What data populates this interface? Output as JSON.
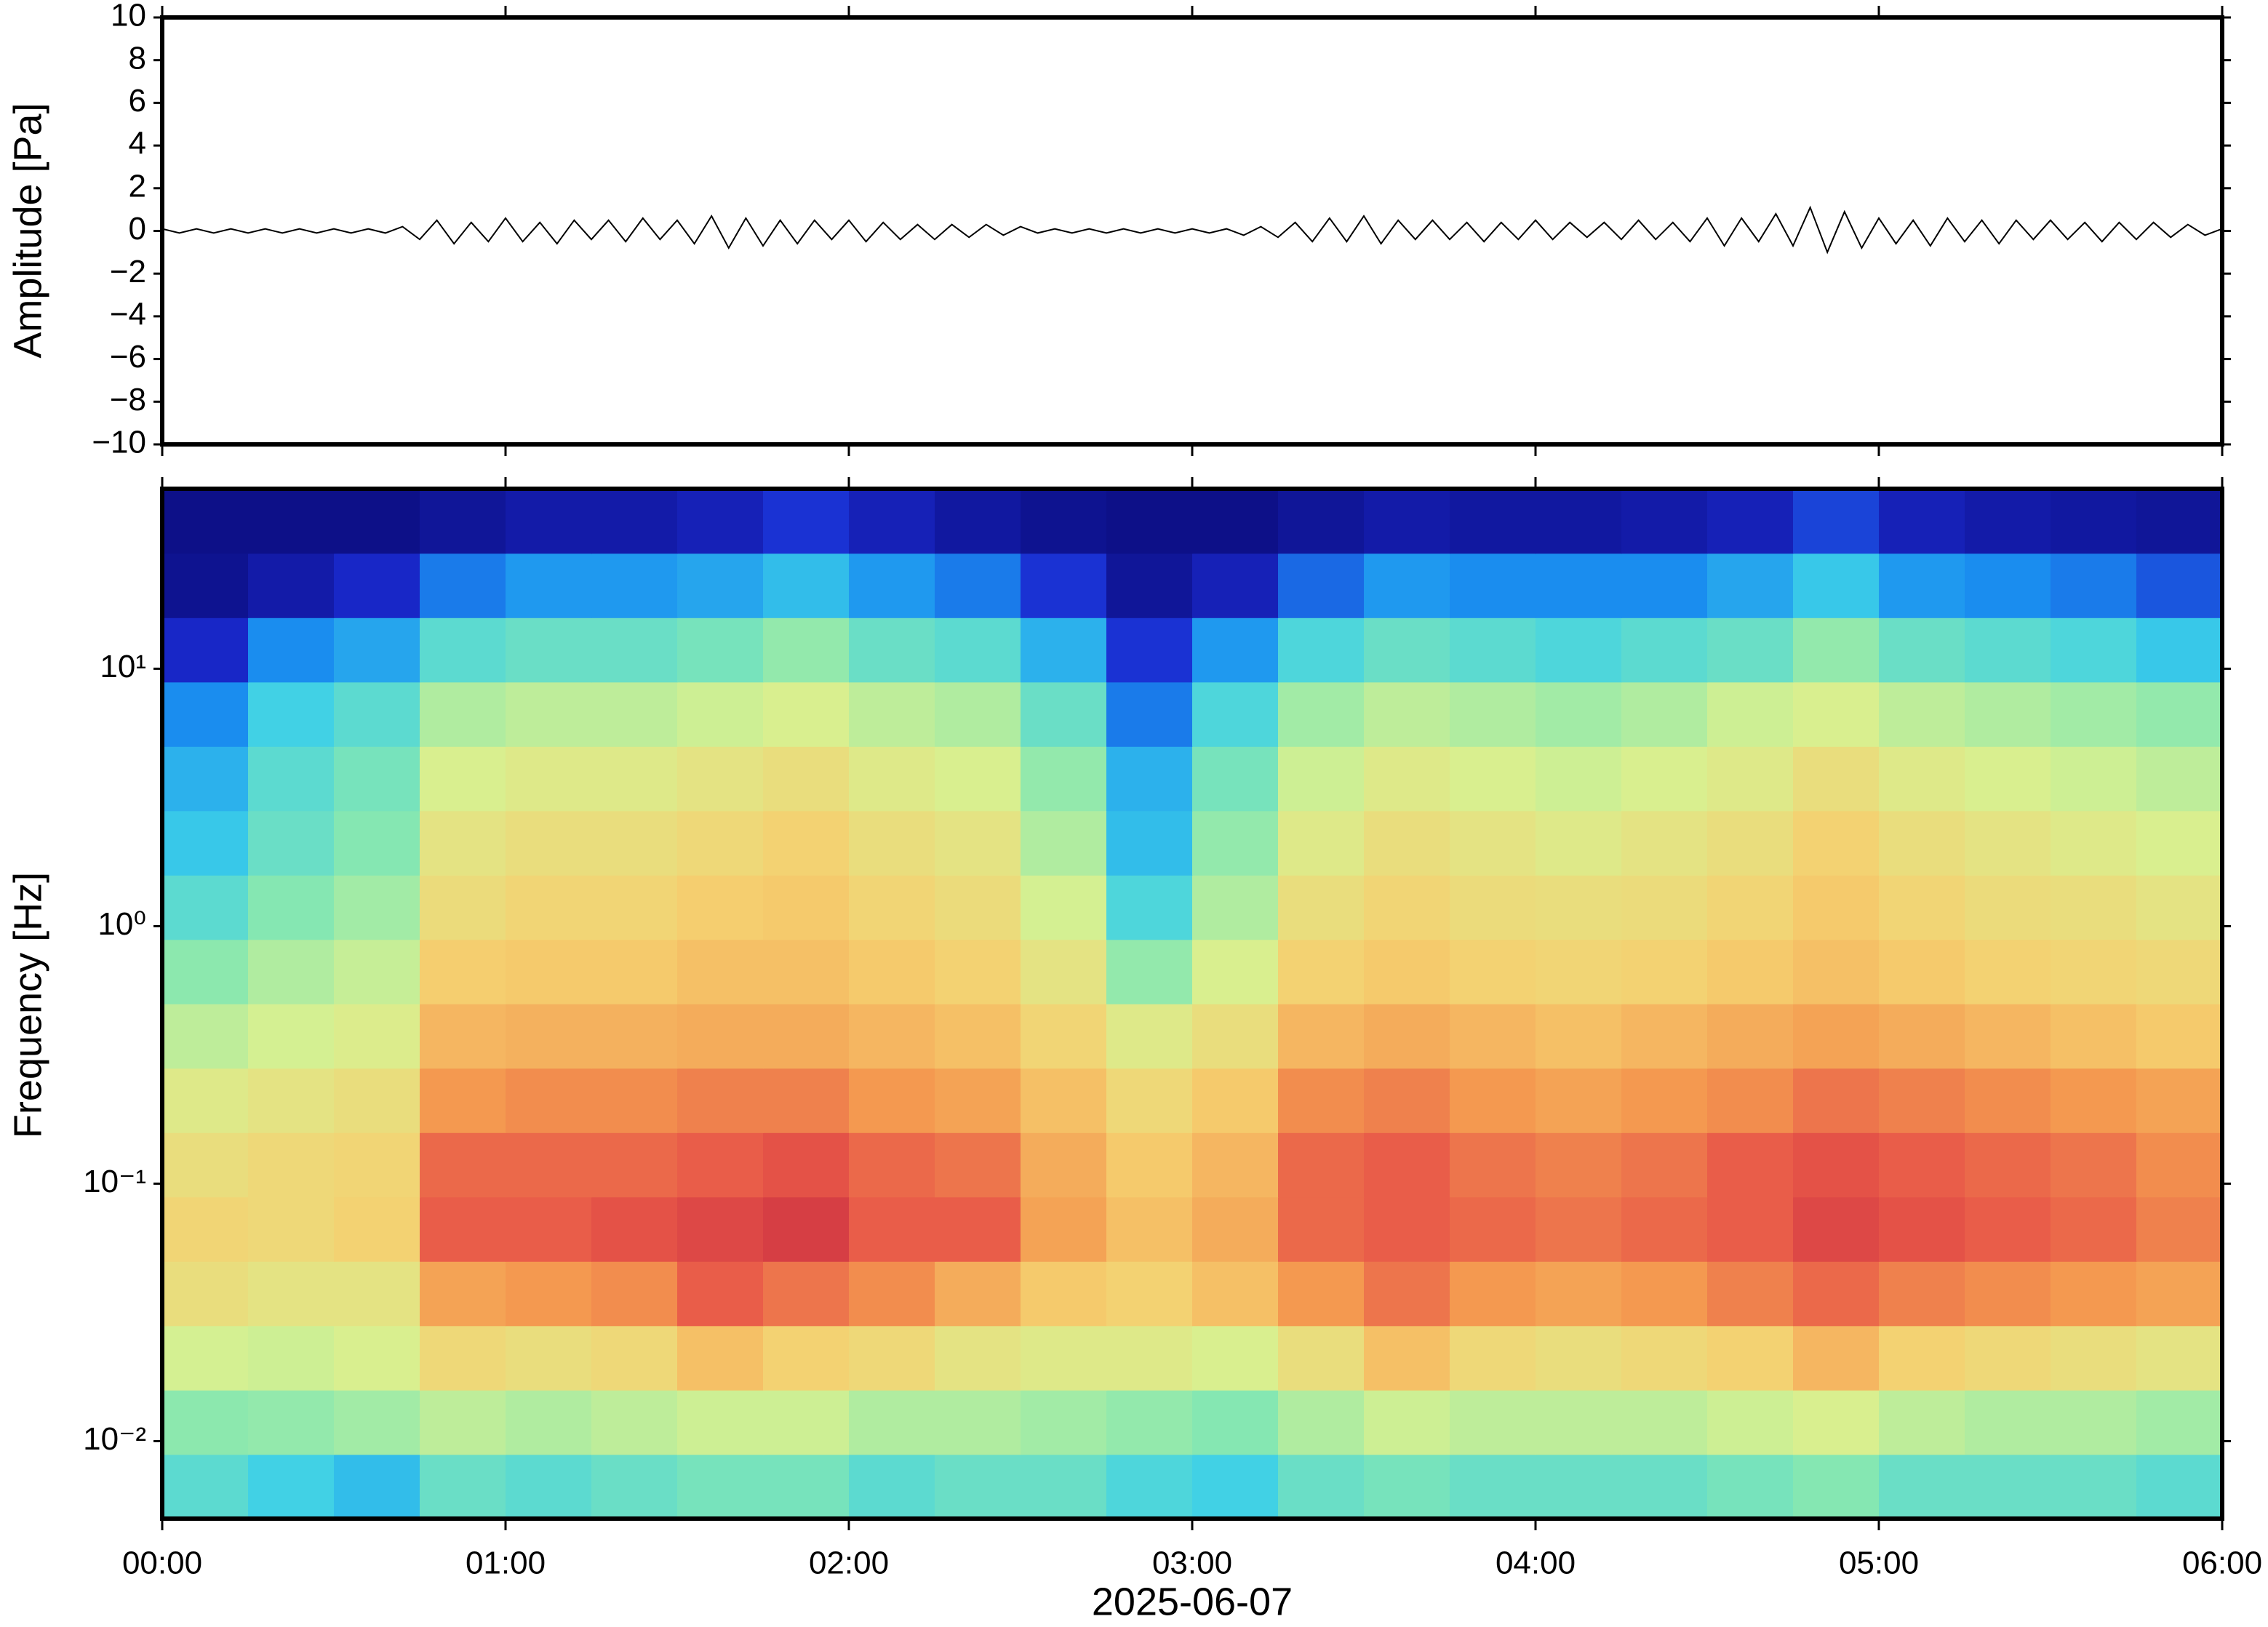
{
  "chart_data": [
    {
      "type": "line",
      "y_label": "Amplitude [Pa]",
      "color": "#000000",
      "xlim": [
        0,
        360
      ],
      "xticks": [
        {
          "value": 0,
          "label": "00:00"
        },
        {
          "value": 60,
          "label": "01:00"
        },
        {
          "value": 120,
          "label": "02:00"
        },
        {
          "value": 180,
          "label": "03:00"
        },
        {
          "value": 240,
          "label": "04:00"
        },
        {
          "value": 300,
          "label": "05:00"
        },
        {
          "value": 360,
          "label": "06:00"
        }
      ],
      "ylim": [
        -10,
        10
      ],
      "yticks": [
        {
          "value": -10,
          "label": "−10"
        },
        {
          "value": -8,
          "label": "−8"
        },
        {
          "value": -6,
          "label": "−6"
        },
        {
          "value": -4,
          "label": "−4"
        },
        {
          "value": -2,
          "label": "−2"
        },
        0,
        2,
        4,
        6,
        8,
        10
      ],
      "x": [
        0,
        3,
        6,
        9,
        12,
        15,
        18,
        21,
        24,
        27,
        30,
        33,
        36,
        39,
        42,
        45,
        48,
        51,
        54,
        57,
        60,
        63,
        66,
        69,
        72,
        75,
        78,
        81,
        84,
        87,
        90,
        93,
        96,
        99,
        102,
        105,
        108,
        111,
        114,
        117,
        120,
        123,
        126,
        129,
        132,
        135,
        138,
        141,
        144,
        147,
        150,
        153,
        156,
        159,
        162,
        165,
        168,
        171,
        174,
        177,
        180,
        183,
        186,
        189,
        192,
        195,
        198,
        201,
        204,
        207,
        210,
        213,
        216,
        219,
        222,
        225,
        228,
        231,
        234,
        237,
        240,
        243,
        246,
        249,
        252,
        255,
        258,
        261,
        264,
        267,
        270,
        273,
        276,
        279,
        282,
        285,
        288,
        291,
        294,
        297,
        300,
        303,
        306,
        309,
        312,
        315,
        318,
        321,
        324,
        327,
        330,
        333,
        336,
        339,
        342,
        345,
        348,
        351,
        354,
        357,
        360
      ],
      "values": [
        0.1,
        -0.1,
        0.1,
        -0.1,
        0.1,
        -0.1,
        0.1,
        -0.1,
        0.1,
        -0.1,
        0.1,
        -0.1,
        0.1,
        -0.1,
        0.2,
        -0.4,
        0.5,
        -0.6,
        0.4,
        -0.5,
        0.6,
        -0.5,
        0.4,
        -0.6,
        0.5,
        -0.4,
        0.5,
        -0.5,
        0.6,
        -0.4,
        0.5,
        -0.6,
        0.7,
        -0.8,
        0.6,
        -0.7,
        0.5,
        -0.6,
        0.5,
        -0.4,
        0.5,
        -0.5,
        0.4,
        -0.4,
        0.3,
        -0.4,
        0.3,
        -0.3,
        0.3,
        -0.2,
        0.2,
        -0.1,
        0.1,
        -0.1,
        0.1,
        -0.1,
        0.1,
        -0.1,
        0.1,
        -0.1,
        0.1,
        -0.1,
        0.1,
        -0.2,
        0.2,
        -0.3,
        0.4,
        -0.5,
        0.6,
        -0.5,
        0.7,
        -0.6,
        0.5,
        -0.4,
        0.5,
        -0.4,
        0.4,
        -0.5,
        0.4,
        -0.4,
        0.5,
        -0.4,
        0.4,
        -0.3,
        0.4,
        -0.4,
        0.5,
        -0.4,
        0.4,
        -0.5,
        0.6,
        -0.7,
        0.6,
        -0.5,
        0.8,
        -0.7,
        1.1,
        -1.0,
        0.9,
        -0.8,
        0.6,
        -0.6,
        0.5,
        -0.7,
        0.6,
        -0.5,
        0.5,
        -0.6,
        0.5,
        -0.4,
        0.5,
        -0.4,
        0.4,
        -0.5,
        0.4,
        -0.4,
        0.4,
        -0.3,
        0.3,
        -0.2,
        0.1
      ]
    },
    {
      "type": "heatmap",
      "y_label": "Frequency [Hz]",
      "x_label": "2025-06-07",
      "log_y": true,
      "xlim": [
        0,
        360
      ],
      "xticks": [
        {
          "value": 0,
          "label": "00:00"
        },
        {
          "value": 60,
          "label": "01:00"
        },
        {
          "value": 120,
          "label": "02:00"
        },
        {
          "value": 180,
          "label": "03:00"
        },
        {
          "value": 240,
          "label": "04:00"
        },
        {
          "value": 300,
          "label": "05:00"
        },
        {
          "value": 360,
          "label": "06:00"
        }
      ],
      "ylim": [
        0.005,
        50
      ],
      "yticks": [
        {
          "value": 0.01,
          "label": "10⁻²"
        },
        {
          "value": 0.1,
          "label": "10⁻¹"
        },
        {
          "value": 1,
          "label": "10⁰"
        },
        {
          "value": 10,
          "label": "10¹"
        }
      ],
      "zlim": [
        0,
        100
      ],
      "colormap": [
        "#0a0a78",
        "#1a2ad0",
        "#1a8ff0",
        "#3cd0e8",
        "#88e8b0",
        "#d8f090",
        "#f5d070",
        "#f49a50",
        "#e85848",
        "#c02040"
      ],
      "z": [
        [
          38,
          34,
          30,
          40,
          38,
          40,
          42,
          42,
          38,
          40,
          40,
          36,
          34,
          40,
          42,
          40,
          40,
          40,
          42,
          44,
          40,
          40,
          40,
          38
        ],
        [
          45,
          46,
          48,
          52,
          50,
          52,
          54,
          54,
          50,
          50,
          48,
          46,
          44,
          50,
          54,
          52,
          52,
          52,
          54,
          56,
          52,
          50,
          50,
          48
        ],
        [
          55,
          54,
          56,
          64,
          62,
          64,
          70,
          66,
          64,
          60,
          58,
          58,
          56,
          62,
          70,
          64,
          62,
          64,
          66,
          72,
          66,
          64,
          62,
          60
        ],
        [
          62,
          60,
          60,
          76,
          78,
          80,
          88,
          84,
          80,
          74,
          68,
          66,
          70,
          78,
          84,
          78,
          76,
          78,
          82,
          86,
          82,
          80,
          78,
          76
        ],
        [
          65,
          64,
          66,
          88,
          88,
          90,
          92,
          94,
          88,
          88,
          76,
          70,
          74,
          86,
          88,
          86,
          84,
          86,
          88,
          92,
          90,
          88,
          86,
          82
        ],
        [
          62,
          64,
          65,
          86,
          86,
          86,
          88,
          90,
          86,
          84,
          74,
          68,
          72,
          86,
          88,
          84,
          82,
          84,
          88,
          90,
          88,
          86,
          84,
          80
        ],
        [
          58,
          60,
          62,
          78,
          80,
          80,
          82,
          82,
          78,
          76,
          70,
          64,
          68,
          80,
          82,
          78,
          76,
          78,
          80,
          84,
          82,
          80,
          78,
          76
        ],
        [
          52,
          55,
          57,
          72,
          73,
          73,
          74,
          74,
          72,
          70,
          65,
          58,
          62,
          72,
          74,
          72,
          70,
          72,
          74,
          76,
          74,
          72,
          70,
          68
        ],
        [
          45,
          50,
          53,
          67,
          68,
          68,
          70,
          70,
          68,
          66,
          60,
          46,
          56,
          66,
          68,
          66,
          65,
          66,
          68,
          70,
          68,
          66,
          65,
          64
        ],
        [
          38,
          44,
          48,
          63,
          65,
          65,
          67,
          68,
          65,
          63,
          55,
          36,
          50,
          62,
          65,
          63,
          62,
          63,
          65,
          68,
          65,
          63,
          62,
          60
        ],
        [
          32,
          40,
          44,
          60,
          62,
          62,
          64,
          66,
          62,
          60,
          50,
          30,
          46,
          58,
          62,
          60,
          58,
          60,
          62,
          66,
          62,
          60,
          58,
          56
        ],
        [
          28,
          38,
          42,
          56,
          58,
          58,
          60,
          62,
          58,
          56,
          46,
          28,
          42,
          54,
          58,
          56,
          54,
          56,
          58,
          62,
          58,
          56,
          54,
          52
        ],
        [
          22,
          34,
          38,
          50,
          52,
          52,
          54,
          56,
          52,
          50,
          40,
          20,
          36,
          48,
          52,
          50,
          48,
          50,
          54,
          56,
          52,
          50,
          48,
          46
        ],
        [
          10,
          22,
          26,
          38,
          40,
          40,
          42,
          46,
          40,
          38,
          28,
          12,
          24,
          36,
          40,
          38,
          36,
          38,
          40,
          46,
          40,
          38,
          36,
          32
        ],
        [
          3,
          6,
          10,
          20,
          24,
          24,
          26,
          30,
          24,
          20,
          12,
          4,
          8,
          18,
          24,
          22,
          22,
          22,
          26,
          32,
          24,
          22,
          20,
          16
        ],
        [
          2,
          2,
          2,
          4,
          6,
          6,
          8,
          12,
          8,
          5,
          3,
          2,
          2,
          4,
          6,
          5,
          5,
          6,
          8,
          14,
          8,
          6,
          5,
          4
        ]
      ]
    }
  ]
}
